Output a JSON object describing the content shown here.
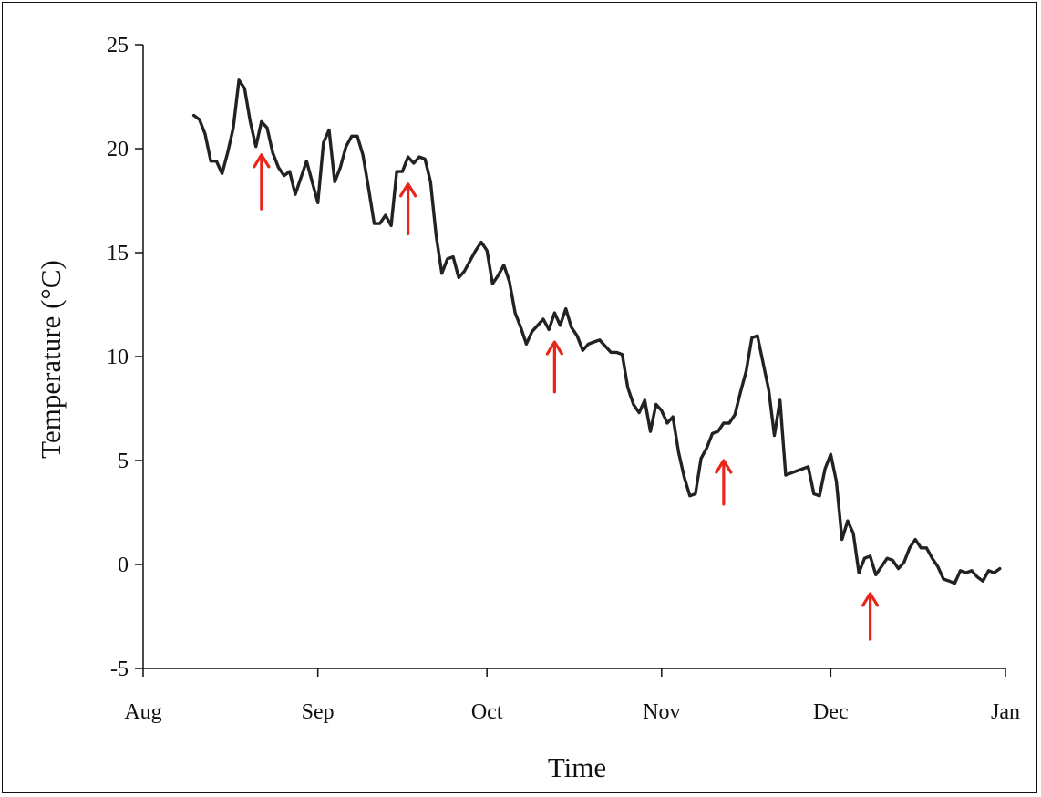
{
  "chart_data": {
    "type": "line",
    "title": "",
    "xlabel": "Time",
    "ylabel": "Temperature (°C)",
    "ylim": [
      -5,
      25
    ],
    "y_ticks": [
      -5,
      0,
      5,
      10,
      15,
      20,
      25
    ],
    "x_range": [
      "2000-08-01",
      "2001-01-01"
    ],
    "x_ticks": [
      {
        "label": "Aug",
        "date": "2000-08-01"
      },
      {
        "label": "Sep",
        "date": "2000-09-01"
      },
      {
        "label": "Oct",
        "date": "2000-10-01"
      },
      {
        "label": "Nov",
        "date": "2000-11-01"
      },
      {
        "label": "Dec",
        "date": "2000-12-01"
      },
      {
        "label": "Jan",
        "date": "2001-01-01"
      }
    ],
    "grid": false,
    "legend": "none",
    "line_color": "#222222",
    "arrow_color": "#e8261a",
    "series": [
      {
        "points": [
          [
            "2000-08-10",
            21.6
          ],
          [
            "2000-08-11",
            21.4
          ],
          [
            "2000-08-12",
            20.7
          ],
          [
            "2000-08-13",
            19.4
          ],
          [
            "2000-08-14",
            19.4
          ],
          [
            "2000-08-15",
            18.8
          ],
          [
            "2000-08-16",
            19.8
          ],
          [
            "2000-08-17",
            21.0
          ],
          [
            "2000-08-18",
            23.3
          ],
          [
            "2000-08-19",
            22.9
          ],
          [
            "2000-08-20",
            21.3
          ],
          [
            "2000-08-21",
            20.1
          ],
          [
            "2000-08-22",
            21.3
          ],
          [
            "2000-08-23",
            21.0
          ],
          [
            "2000-08-24",
            19.8
          ],
          [
            "2000-08-25",
            19.1
          ],
          [
            "2000-08-26",
            18.7
          ],
          [
            "2000-08-27",
            18.9
          ],
          [
            "2000-08-28",
            17.8
          ],
          [
            "2000-08-29",
            18.6
          ],
          [
            "2000-08-30",
            19.4
          ],
          [
            "2000-08-31",
            18.4
          ],
          [
            "2000-09-01",
            17.4
          ],
          [
            "2000-09-02",
            20.3
          ],
          [
            "2000-09-03",
            20.9
          ],
          [
            "2000-09-04",
            18.4
          ],
          [
            "2000-09-05",
            19.1
          ],
          [
            "2000-09-06",
            20.1
          ],
          [
            "2000-09-07",
            20.6
          ],
          [
            "2000-09-08",
            20.6
          ],
          [
            "2000-09-09",
            19.7
          ],
          [
            "2000-09-10",
            18.1
          ],
          [
            "2000-09-11",
            16.4
          ],
          [
            "2000-09-12",
            16.4
          ],
          [
            "2000-09-13",
            16.8
          ],
          [
            "2000-09-14",
            16.3
          ],
          [
            "2000-09-15",
            18.9
          ],
          [
            "2000-09-16",
            18.9
          ],
          [
            "2000-09-17",
            19.6
          ],
          [
            "2000-09-18",
            19.3
          ],
          [
            "2000-09-19",
            19.6
          ],
          [
            "2000-09-20",
            19.5
          ],
          [
            "2000-09-21",
            18.4
          ],
          [
            "2000-09-22",
            15.8
          ],
          [
            "2000-09-23",
            14.0
          ],
          [
            "2000-09-24",
            14.7
          ],
          [
            "2000-09-25",
            14.8
          ],
          [
            "2000-09-26",
            13.8
          ],
          [
            "2000-09-27",
            14.1
          ],
          [
            "2000-09-28",
            14.6
          ],
          [
            "2000-09-29",
            15.1
          ],
          [
            "2000-09-30",
            15.5
          ],
          [
            "2000-10-01",
            15.1
          ],
          [
            "2000-10-02",
            13.5
          ],
          [
            "2000-10-03",
            13.9
          ],
          [
            "2000-10-04",
            14.4
          ],
          [
            "2000-10-05",
            13.6
          ],
          [
            "2000-10-06",
            12.1
          ],
          [
            "2000-10-07",
            11.4
          ],
          [
            "2000-10-08",
            10.6
          ],
          [
            "2000-10-09",
            11.2
          ],
          [
            "2000-10-10",
            11.5
          ],
          [
            "2000-10-11",
            11.8
          ],
          [
            "2000-10-12",
            11.3
          ],
          [
            "2000-10-13",
            12.1
          ],
          [
            "2000-10-14",
            11.5
          ],
          [
            "2000-10-15",
            12.3
          ],
          [
            "2000-10-16",
            11.4
          ],
          [
            "2000-10-17",
            11.0
          ],
          [
            "2000-10-18",
            10.3
          ],
          [
            "2000-10-19",
            10.6
          ],
          [
            "2000-10-20",
            10.7
          ],
          [
            "2000-10-21",
            10.8
          ],
          [
            "2000-10-22",
            10.5
          ],
          [
            "2000-10-23",
            10.2
          ],
          [
            "2000-10-24",
            10.2
          ],
          [
            "2000-10-25",
            10.1
          ],
          [
            "2000-10-26",
            8.5
          ],
          [
            "2000-10-27",
            7.7
          ],
          [
            "2000-10-28",
            7.3
          ],
          [
            "2000-10-29",
            7.9
          ],
          [
            "2000-10-30",
            6.4
          ],
          [
            "2000-10-31",
            7.7
          ],
          [
            "2000-11-01",
            7.4
          ],
          [
            "2000-11-02",
            6.8
          ],
          [
            "2000-11-03",
            7.1
          ],
          [
            "2000-11-04",
            5.4
          ],
          [
            "2000-11-05",
            4.2
          ],
          [
            "2000-11-06",
            3.3
          ],
          [
            "2000-11-07",
            3.4
          ],
          [
            "2000-11-08",
            5.1
          ],
          [
            "2000-11-09",
            5.6
          ],
          [
            "2000-11-10",
            6.3
          ],
          [
            "2000-11-11",
            6.4
          ],
          [
            "2000-11-12",
            6.8
          ],
          [
            "2000-11-13",
            6.8
          ],
          [
            "2000-11-14",
            7.2
          ],
          [
            "2000-11-15",
            8.3
          ],
          [
            "2000-11-16",
            9.3
          ],
          [
            "2000-11-17",
            10.9
          ],
          [
            "2000-11-18",
            11.0
          ],
          [
            "2000-11-19",
            9.7
          ],
          [
            "2000-11-20",
            8.4
          ],
          [
            "2000-11-21",
            6.2
          ],
          [
            "2000-11-22",
            7.9
          ],
          [
            "2000-11-23",
            4.3
          ],
          [
            "2000-11-24",
            4.4
          ],
          [
            "2000-11-25",
            4.5
          ],
          [
            "2000-11-26",
            4.6
          ],
          [
            "2000-11-27",
            4.7
          ],
          [
            "2000-11-28",
            3.4
          ],
          [
            "2000-11-29",
            3.3
          ],
          [
            "2000-11-30",
            4.6
          ],
          [
            "2000-12-01",
            5.3
          ],
          [
            "2000-12-02",
            4.0
          ],
          [
            "2000-12-03",
            1.2
          ],
          [
            "2000-12-04",
            2.1
          ],
          [
            "2000-12-05",
            1.5
          ],
          [
            "2000-12-06",
            -0.4
          ],
          [
            "2000-12-07",
            0.3
          ],
          [
            "2000-12-08",
            0.4
          ],
          [
            "2000-12-09",
            -0.5
          ],
          [
            "2000-12-10",
            -0.1
          ],
          [
            "2000-12-11",
            0.3
          ],
          [
            "2000-12-12",
            0.2
          ],
          [
            "2000-12-13",
            -0.2
          ],
          [
            "2000-12-14",
            0.1
          ],
          [
            "2000-12-15",
            0.8
          ],
          [
            "2000-12-16",
            1.2
          ],
          [
            "2000-12-17",
            0.8
          ],
          [
            "2000-12-18",
            0.8
          ],
          [
            "2000-12-19",
            0.3
          ],
          [
            "2000-12-20",
            -0.1
          ],
          [
            "2000-12-21",
            -0.7
          ],
          [
            "2000-12-22",
            -0.8
          ],
          [
            "2000-12-23",
            -0.9
          ],
          [
            "2000-12-24",
            -0.3
          ],
          [
            "2000-12-25",
            -0.4
          ],
          [
            "2000-12-26",
            -0.3
          ],
          [
            "2000-12-27",
            -0.6
          ],
          [
            "2000-12-28",
            -0.8
          ],
          [
            "2000-12-29",
            -0.3
          ],
          [
            "2000-12-30",
            -0.4
          ],
          [
            "2000-12-31",
            -0.2
          ]
        ]
      }
    ],
    "annotations": [
      {
        "type": "up-arrow",
        "date": "2000-08-22",
        "y_tip": 19.7,
        "y_tail": 17.1
      },
      {
        "type": "up-arrow",
        "date": "2000-09-17",
        "y_tip": 18.3,
        "y_tail": 15.9
      },
      {
        "type": "up-arrow",
        "date": "2000-10-13",
        "y_tip": 10.7,
        "y_tail": 8.3
      },
      {
        "type": "up-arrow",
        "date": "2000-11-12",
        "y_tip": 5.0,
        "y_tail": 2.9
      },
      {
        "type": "up-arrow",
        "date": "2000-12-08",
        "y_tip": -1.4,
        "y_tail": -3.6
      }
    ]
  }
}
